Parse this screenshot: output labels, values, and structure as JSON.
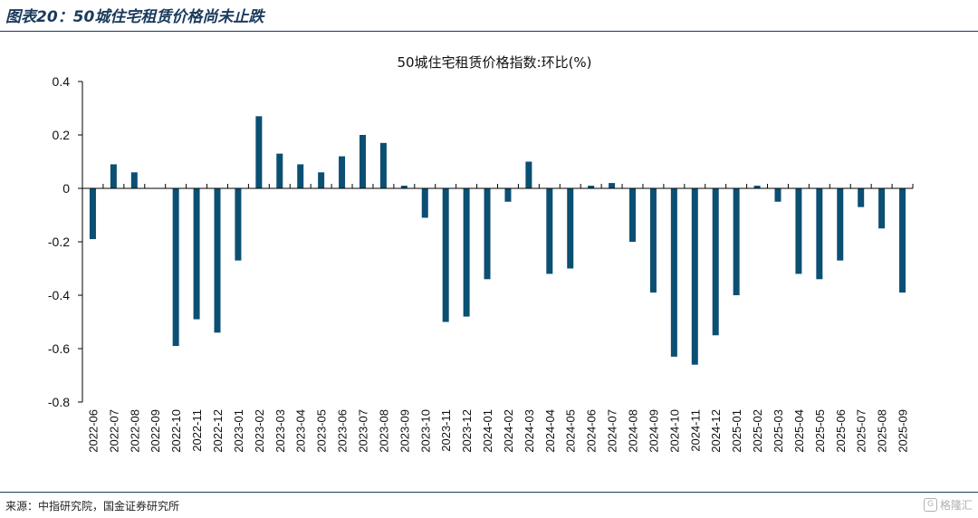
{
  "header": {
    "title": "图表20：50城住宅租赁价格尚未止跌"
  },
  "footer": {
    "source": "来源：中指研究院，国金证券研究所",
    "watermark": "格隆汇",
    "watermark_glyph": "G"
  },
  "colors": {
    "bar": "#0b4f73",
    "rule": "#1a3a5c",
    "axis": "#000000"
  },
  "chart_data": {
    "type": "bar",
    "title": "50城住宅租赁价格指数:环比(%)",
    "xlabel": "",
    "ylabel": "",
    "ylim": [
      -0.8,
      0.4
    ],
    "yticks": [
      0.4,
      0.2,
      0,
      -0.2,
      -0.4,
      -0.6,
      -0.8
    ],
    "yticklabels": [
      "0.4",
      "0.2",
      "0",
      "-0.2",
      "-0.4",
      "-0.6",
      "-0.8"
    ],
    "grid": false,
    "categories": [
      "2022-06",
      "2022-07",
      "2022-08",
      "2022-09",
      "2022-10",
      "2022-11",
      "2022-12",
      "2023-01",
      "2023-02",
      "2023-03",
      "2023-04",
      "2023-05",
      "2023-06",
      "2023-07",
      "2023-08",
      "2023-09",
      "2023-10",
      "2023-11",
      "2023-12",
      "2024-01",
      "2024-02",
      "2024-03",
      "2024-04",
      "2024-05",
      "2024-06",
      "2024-07",
      "2024-08",
      "2024-09",
      "2024-10",
      "2024-11",
      "2024-12",
      "2025-01",
      "2025-02",
      "2025-03",
      "2025-04",
      "2025-05",
      "2025-06",
      "2025-07",
      "2025-08",
      "2025-09"
    ],
    "values": [
      -0.19,
      0.09,
      0.06,
      0.0,
      -0.59,
      -0.49,
      -0.54,
      -0.27,
      0.27,
      0.13,
      0.09,
      0.06,
      0.12,
      0.2,
      0.17,
      0.01,
      -0.11,
      -0.5,
      -0.48,
      -0.34,
      -0.05,
      0.1,
      -0.32,
      -0.3,
      0.01,
      0.02,
      -0.2,
      -0.39,
      -0.63,
      -0.66,
      -0.55,
      -0.4,
      0.01,
      -0.05,
      -0.32,
      -0.34,
      -0.27,
      -0.07,
      -0.15,
      -0.39
    ]
  }
}
